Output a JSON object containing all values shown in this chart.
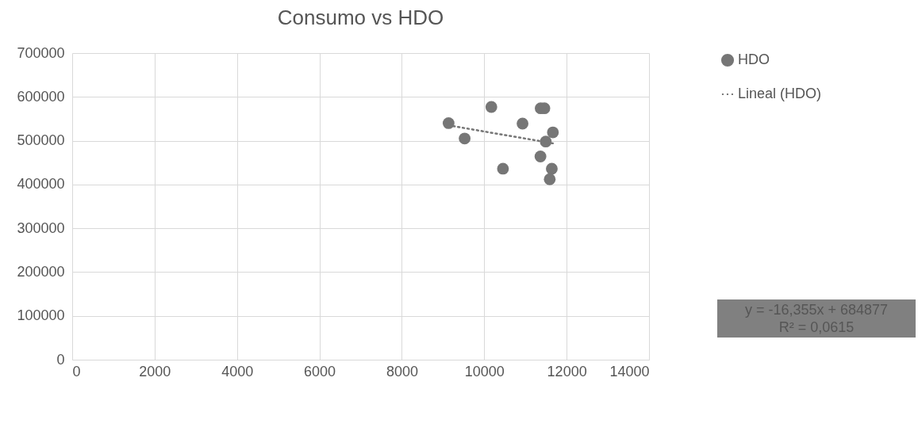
{
  "chart_data": {
    "type": "scatter",
    "title": "Consumo vs HDO",
    "xlim": [
      0,
      14000
    ],
    "xticks": [
      0,
      2000,
      4000,
      6000,
      8000,
      10000,
      12000,
      14000
    ],
    "ylim": [
      0,
      700000
    ],
    "yticks": [
      0,
      100000,
      200000,
      300000,
      400000,
      500000,
      600000,
      700000
    ],
    "grid": true,
    "legend": "right",
    "series": [
      {
        "name": "HDO",
        "marker": "circle",
        "color": "#767676",
        "x": [
          9135,
          9525,
          10173,
          10930,
          11370,
          11460,
          11667,
          11494,
          11365,
          10455,
          11640,
          11590
        ],
        "values": [
          540000,
          505000,
          577000,
          539000,
          574000,
          574000,
          519000,
          498000,
          464000,
          436000,
          436000,
          412000
        ]
      },
      {
        "name": "Lineal (HDO)",
        "type": "line",
        "line_style": "dotted",
        "color": "#767676",
        "x": [
          9135,
          11667
        ],
        "values": [
          535000,
          494000
        ]
      }
    ],
    "annotations": [
      "y = -16,355x + 684877\nR² = 0,0615"
    ]
  }
}
